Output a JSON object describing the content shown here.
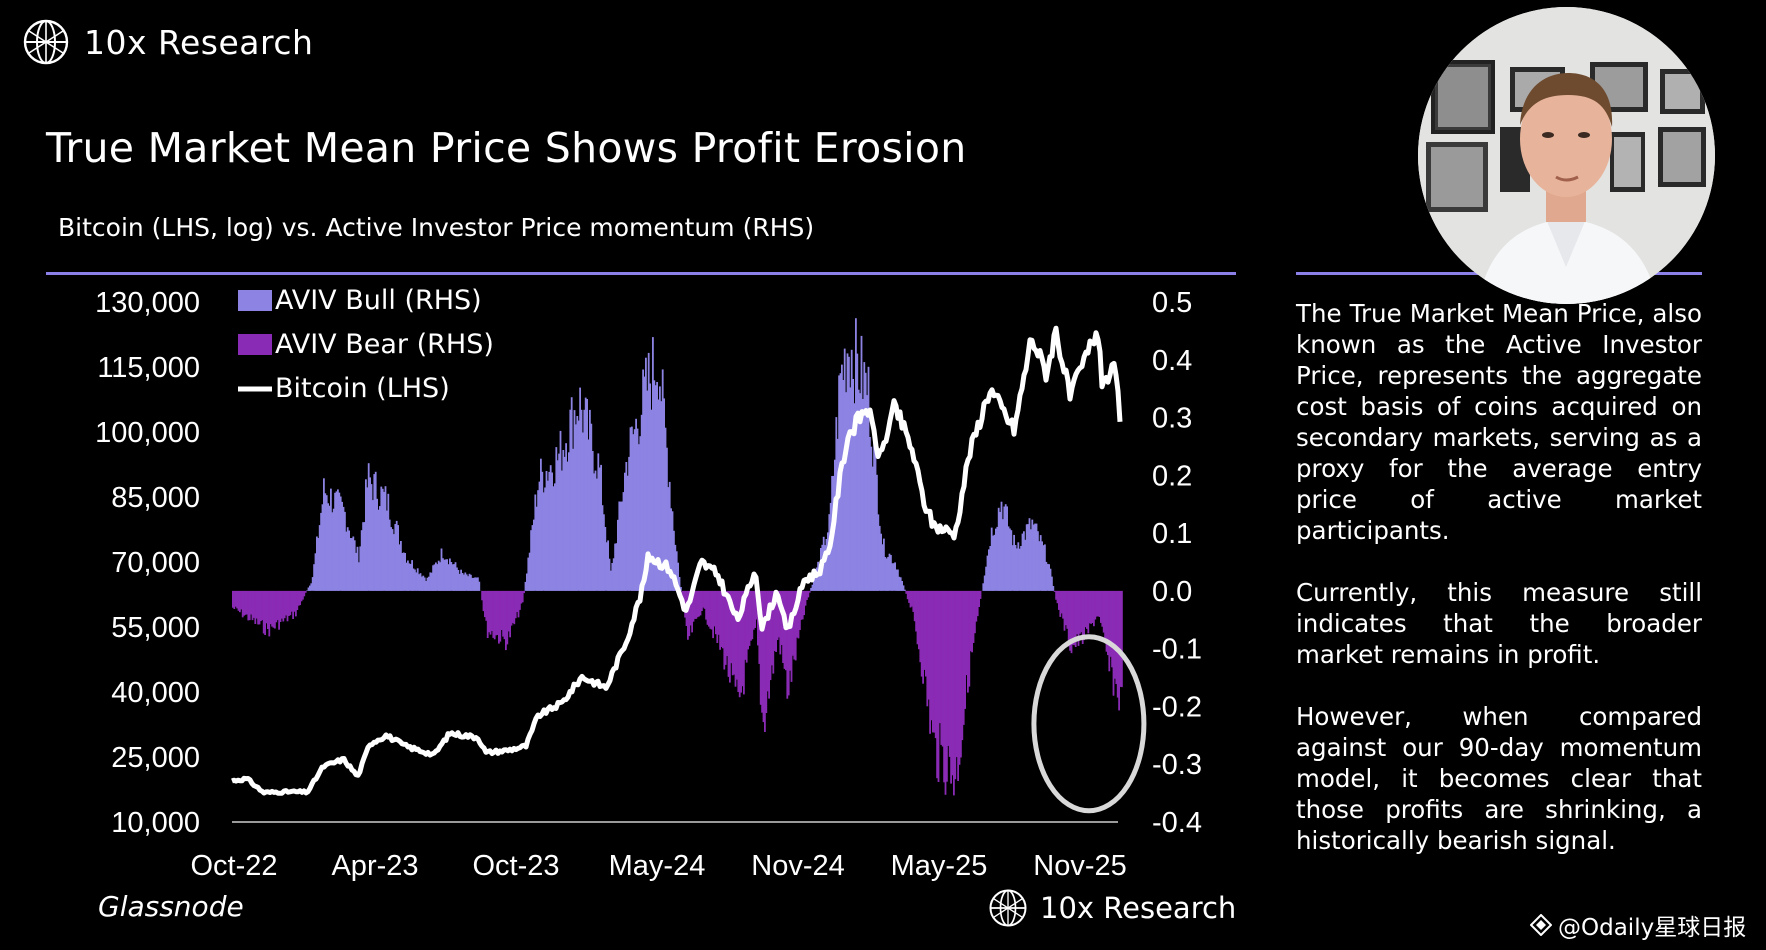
{
  "header": {
    "brand": "10x Research",
    "title": "True Market Mean Price Shows Profit Erosion",
    "subtitle": "Bitcoin (LHS, log) vs. Active Investor Price momentum (RHS)"
  },
  "commentary": [
    "The True Market Mean Price, also known as the Active Investor Price, represents the aggregate cost basis of coins acquired on secondary markets, serving as a proxy for the average entry price of active market participants.",
    "Currently, this measure still indicates that the broader market remains in profit.",
    "However, when compared against our 90-day momentum model, it becomes clear that those profits are shrinking, a historically bearish signal."
  ],
  "footer": {
    "source": "Glassnode",
    "brand": "10x Research",
    "watermark": "@Odaily星球日报"
  },
  "colors": {
    "background": "#000000",
    "bull": "#8c83e3",
    "bear": "#8a2bb5",
    "bitcoin": "#ffffff",
    "rule": "#8b7fe8",
    "highlight_circle": "#d9d9d9"
  },
  "icons": [
    "globe-logo-icon",
    "presenter-photo",
    "highlight-circle"
  ],
  "chart_data": {
    "type": "line",
    "title": "",
    "xlabel": "",
    "ylabel": "",
    "x_ticks": [
      "Oct-22",
      "Apr-23",
      "Oct-23",
      "May-24",
      "Nov-24",
      "May-25",
      "Nov-25"
    ],
    "x_range": [
      "2022-10-01",
      "2025-11-01"
    ],
    "y_left": {
      "ticks": [
        "130,000",
        "115,000",
        "100,000",
        "85,000",
        "70,000",
        "55,000",
        "40,000",
        "25,000",
        "10,000"
      ],
      "range": [
        10000,
        130000
      ]
    },
    "y_right": {
      "ticks": [
        "0.5",
        "0.4",
        "0.3",
        "0.2",
        "0.1",
        "0.0",
        "-0.1",
        "-0.2",
        "-0.3",
        "-0.4"
      ],
      "range": [
        -0.4,
        0.5
      ]
    },
    "legend": {
      "placement": "top-left",
      "entries": [
        {
          "label": "AVIV Bull (RHS)",
          "kind": "bar",
          "color": "#8c83e3"
        },
        {
          "label": "AVIV Bear (RHS)",
          "kind": "bar",
          "color": "#8a2bb5"
        },
        {
          "label": "Bitcoin (LHS)",
          "kind": "line",
          "color": "#ffffff"
        }
      ]
    },
    "series": [
      {
        "name": "Bitcoin (LHS)",
        "axis": "left",
        "points": [
          [
            "2022-10-01",
            19500
          ],
          [
            "2022-10-20",
            20000
          ],
          [
            "2022-11-10",
            16800
          ],
          [
            "2022-12-15",
            17000
          ],
          [
            "2023-01-05",
            16900
          ],
          [
            "2023-01-25",
            22800
          ],
          [
            "2023-02-20",
            24500
          ],
          [
            "2023-03-10",
            20500
          ],
          [
            "2023-03-25",
            28000
          ],
          [
            "2023-04-15",
            30000
          ],
          [
            "2023-05-10",
            27500
          ],
          [
            "2023-06-15",
            25500
          ],
          [
            "2023-07-05",
            30500
          ],
          [
            "2023-08-10",
            29500
          ],
          [
            "2023-08-20",
            26000
          ],
          [
            "2023-09-15",
            26500
          ],
          [
            "2023-10-10",
            27500
          ],
          [
            "2023-10-25",
            34500
          ],
          [
            "2023-11-25",
            37500
          ],
          [
            "2023-12-20",
            43500
          ],
          [
            "2024-01-20",
            41000
          ],
          [
            "2024-02-15",
            52000
          ],
          [
            "2024-03-05",
            63000
          ],
          [
            "2024-03-14",
            71500
          ],
          [
            "2024-04-10",
            68500
          ],
          [
            "2024-05-01",
            58500
          ],
          [
            "2024-05-20",
            70000
          ],
          [
            "2024-06-10",
            67000
          ],
          [
            "2024-07-05",
            56500
          ],
          [
            "2024-07-28",
            68500
          ],
          [
            "2024-08-05",
            54500
          ],
          [
            "2024-08-25",
            63500
          ],
          [
            "2024-09-06",
            53500
          ],
          [
            "2024-09-28",
            66000
          ],
          [
            "2024-10-15",
            67500
          ],
          [
            "2024-10-29",
            72000
          ],
          [
            "2024-11-12",
            89000
          ],
          [
            "2024-11-22",
            99000
          ],
          [
            "2024-12-17",
            106000
          ],
          [
            "2025-01-02",
            94000
          ],
          [
            "2025-01-21",
            106000
          ],
          [
            "2025-02-12",
            96000
          ],
          [
            "2025-02-27",
            84000
          ],
          [
            "2025-03-11",
            78500
          ],
          [
            "2025-04-08",
            76500
          ],
          [
            "2025-04-25",
            94500
          ],
          [
            "2025-05-22",
            110000
          ],
          [
            "2025-06-22",
            100500
          ],
          [
            "2025-07-14",
            122000
          ],
          [
            "2025-08-02",
            113500
          ],
          [
            "2025-08-14",
            123500
          ],
          [
            "2025-09-01",
            108000
          ],
          [
            "2025-10-06",
            124000
          ],
          [
            "2025-10-11",
            112000
          ],
          [
            "2025-10-28",
            114000
          ],
          [
            "2025-11-05",
            101500
          ]
        ]
      },
      {
        "name": "AVIV Bull (RHS)",
        "axis": "right",
        "positive_only": true,
        "points": [
          [
            "2022-10-01",
            -0.03
          ],
          [
            "2022-11-15",
            -0.07
          ],
          [
            "2022-12-20",
            -0.04
          ],
          [
            "2023-01-10",
            0.02
          ],
          [
            "2023-01-25",
            0.18
          ],
          [
            "2023-02-20",
            0.14
          ],
          [
            "2023-03-10",
            0.06
          ],
          [
            "2023-03-22",
            0.2
          ],
          [
            "2023-04-15",
            0.16
          ],
          [
            "2023-05-10",
            0.06
          ],
          [
            "2023-06-05",
            0.02
          ],
          [
            "2023-06-25",
            0.07
          ],
          [
            "2023-07-20",
            0.03
          ],
          [
            "2023-08-10",
            0.02
          ],
          [
            "2023-08-20",
            -0.07
          ],
          [
            "2023-09-15",
            -0.09
          ],
          [
            "2023-10-05",
            -0.02
          ],
          [
            "2023-10-25",
            0.2
          ],
          [
            "2023-11-20",
            0.24
          ],
          [
            "2023-12-15",
            0.34
          ],
          [
            "2024-01-10",
            0.22
          ],
          [
            "2024-01-25",
            0.03
          ],
          [
            "2024-02-15",
            0.24
          ],
          [
            "2024-03-10",
            0.36
          ],
          [
            "2024-03-25",
            0.42
          ],
          [
            "2024-04-15",
            0.1
          ],
          [
            "2024-05-01",
            -0.09
          ],
          [
            "2024-05-20",
            -0.03
          ],
          [
            "2024-06-15",
            -0.11
          ],
          [
            "2024-07-05",
            -0.2
          ],
          [
            "2024-07-28",
            -0.06
          ],
          [
            "2024-08-05",
            -0.24
          ],
          [
            "2024-08-25",
            -0.08
          ],
          [
            "2024-09-06",
            -0.18
          ],
          [
            "2024-09-28",
            -0.03
          ],
          [
            "2024-10-15",
            0.05
          ],
          [
            "2024-10-29",
            0.12
          ],
          [
            "2024-11-12",
            0.38
          ],
          [
            "2024-11-22",
            0.44
          ],
          [
            "2024-12-17",
            0.36
          ],
          [
            "2025-01-05",
            0.08
          ],
          [
            "2025-01-21",
            0.05
          ],
          [
            "2025-02-12",
            -0.04
          ],
          [
            "2025-02-27",
            -0.16
          ],
          [
            "2025-03-11",
            -0.28
          ],
          [
            "2025-04-08",
            -0.33
          ],
          [
            "2025-04-25",
            -0.14
          ],
          [
            "2025-05-22",
            0.1
          ],
          [
            "2025-06-05",
            0.16
          ],
          [
            "2025-06-22",
            0.08
          ],
          [
            "2025-07-14",
            0.12
          ],
          [
            "2025-08-02",
            0.06
          ],
          [
            "2025-08-14",
            -0.02
          ],
          [
            "2025-09-01",
            -0.1
          ],
          [
            "2025-09-20",
            -0.08
          ],
          [
            "2025-10-06",
            -0.04
          ],
          [
            "2025-10-20",
            -0.14
          ],
          [
            "2025-11-05",
            -0.2
          ]
        ]
      },
      {
        "name": "AVIV Bear (RHS)",
        "axis": "right",
        "negative_only": true,
        "same_as": "AVIV Bull (RHS)"
      }
    ],
    "annotations": [
      {
        "kind": "ellipse",
        "center": [
          "2025-09-25",
          -0.23
        ],
        "note": "highlights latest negative momentum"
      }
    ]
  }
}
